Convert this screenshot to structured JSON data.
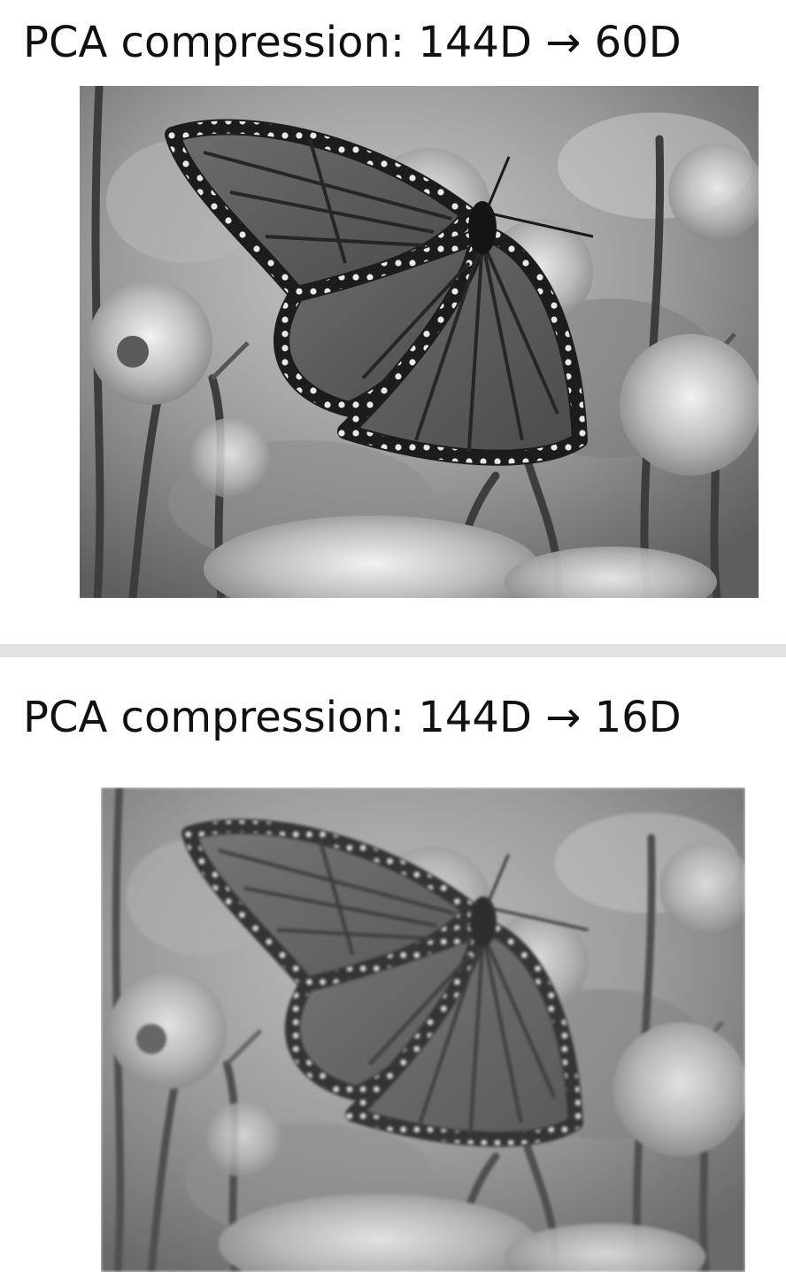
{
  "panels": [
    {
      "title": "PCA compression: 144D →  60D"
    },
    {
      "title": "PCA compression: 144D → 16D"
    }
  ],
  "colors": {
    "background": "#ffffff",
    "divider": "#e2e2e2",
    "text": "#111111"
  }
}
